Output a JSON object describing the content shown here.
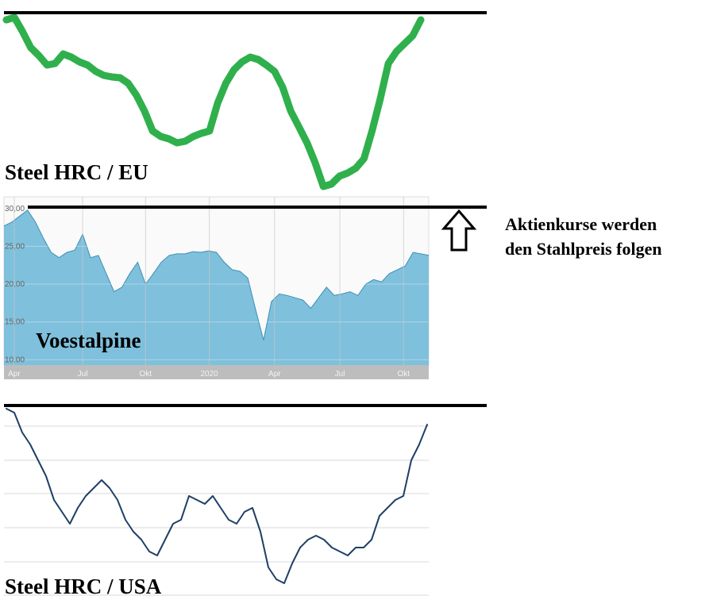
{
  "chart_data": [
    {
      "type": "line",
      "title": "Steel HRC / EU",
      "color": "#2fb04c",
      "values": [
        220,
        223,
        205,
        185,
        175,
        163,
        165,
        177,
        173,
        167,
        163,
        155,
        150,
        148,
        147,
        140,
        125,
        105,
        80,
        73,
        70,
        65,
        67,
        73,
        77,
        80,
        115,
        140,
        157,
        167,
        173,
        170,
        163,
        155,
        135,
        105,
        85,
        65,
        40,
        10,
        13,
        23,
        27,
        33,
        45,
        80,
        120,
        165,
        180,
        190,
        200,
        220
      ],
      "ylim": [
        0,
        245
      ]
    },
    {
      "type": "area",
      "title": "Voestalpine",
      "color": "#7fc0dc",
      "line_color": "#3d8fb6",
      "values": [
        27.7,
        28.2,
        29,
        29.8,
        28.2,
        26.1,
        24.2,
        23.5,
        24.2,
        24.5,
        26.6,
        23.5,
        23.8,
        21.4,
        19,
        19.6,
        21.4,
        22.9,
        20,
        21.4,
        22.9,
        23.8,
        24,
        24,
        24.3,
        24.2,
        24.4,
        24.2,
        22.9,
        21.9,
        21.7,
        20.8,
        16.6,
        12.6,
        17.7,
        18.7,
        18.5,
        18.2,
        17.9,
        16.8,
        18.2,
        19.6,
        18.5,
        18.7,
        19,
        18.5,
        20,
        20.6,
        20.3,
        21.4,
        21.9,
        22.4,
        24.2,
        24,
        23.8
      ],
      "xlim": [
        0,
        54
      ],
      "ylim": [
        9.3,
        30.5
      ],
      "yticks": [
        {
          "value": 30,
          "label": "30,00"
        },
        {
          "value": 25,
          "label": "25,00"
        },
        {
          "value": 20,
          "label": "20,00"
        },
        {
          "value": 15,
          "label": "15,00"
        },
        {
          "value": 10,
          "label": "10,00"
        }
      ],
      "xticks": [
        {
          "value": 1.3,
          "label": "Apr"
        },
        {
          "value": 10,
          "label": "Jul"
        },
        {
          "value": 18,
          "label": "Okt"
        },
        {
          "value": 26.1,
          "label": "2020"
        },
        {
          "value": 34.4,
          "label": "Apr"
        },
        {
          "value": 42.7,
          "label": "Jul"
        },
        {
          "value": 50.8,
          "label": "Okt"
        }
      ],
      "grid": true
    },
    {
      "type": "line",
      "title": "Steel HRC / USA",
      "color": "#1e3f66",
      "values": [
        245,
        240,
        215,
        200,
        180,
        160,
        130,
        115,
        100,
        120,
        135,
        145,
        155,
        145,
        130,
        105,
        90,
        80,
        65,
        60,
        80,
        100,
        105,
        135,
        130,
        125,
        135,
        120,
        105,
        100,
        115,
        120,
        90,
        45,
        30,
        25,
        50,
        70,
        80,
        85,
        80,
        70,
        65,
        60,
        70,
        70,
        80,
        110,
        120,
        130,
        135,
        180,
        200,
        225
      ],
      "ylim": [
        0,
        250
      ]
    }
  ],
  "annotation": [
    "Aktienkurse werden",
    "den Stahlpreis folgen"
  ]
}
